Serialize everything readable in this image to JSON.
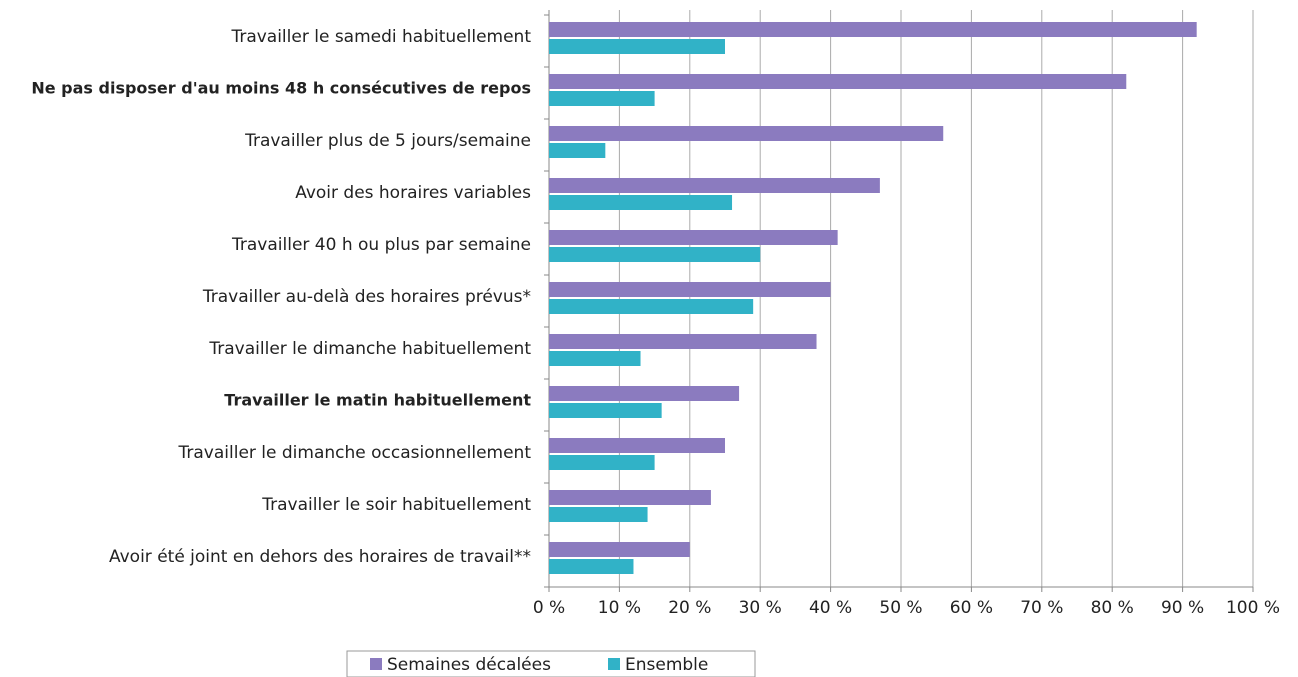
{
  "chart_data": {
    "type": "barh",
    "categories": [
      "Travailler le samedi habituellement",
      "Ne pas disposer d'au moins 48 h consécutives de repos",
      "Travailler plus de 5 jours/semaine",
      "Avoir des horaires variables",
      "Travailler 40 h ou plus par semaine",
      "Travailler au-delà des horaires prévus*",
      "Travailler le dimanche habituellement",
      "Travailler le matin habituellement",
      "Travailler le dimanche occasionnellement",
      "Travailler le soir habituellement",
      "Avoir été joint en dehors des horaires de travail**"
    ],
    "series": [
      {
        "name": "Semaines décalées",
        "color": "#8b7bbf",
        "values": [
          92,
          82,
          56,
          47,
          41,
          40,
          38,
          27,
          25,
          23,
          20
        ]
      },
      {
        "name": "Ensemble",
        "color": "#31b2c7",
        "values": [
          25,
          15,
          8,
          26,
          30,
          29,
          13,
          16,
          15,
          14,
          12
        ]
      }
    ],
    "xlim": [
      0,
      100
    ],
    "xticks": [
      {
        "value": 0,
        "label": "0 %"
      },
      {
        "value": 10,
        "label": "10 %"
      },
      {
        "value": 20,
        "label": "20 %"
      },
      {
        "value": 30,
        "label": "30 %"
      },
      {
        "value": 40,
        "label": "40 %"
      },
      {
        "value": 50,
        "label": "50 %"
      },
      {
        "value": 60,
        "label": "60 %"
      },
      {
        "value": 70,
        "label": "70 %"
      },
      {
        "value": 80,
        "label": "80 %"
      },
      {
        "value": 90,
        "label": "90 %"
      },
      {
        "value": 100,
        "label": "100 %"
      }
    ],
    "grid": true,
    "legend": "bottom"
  }
}
